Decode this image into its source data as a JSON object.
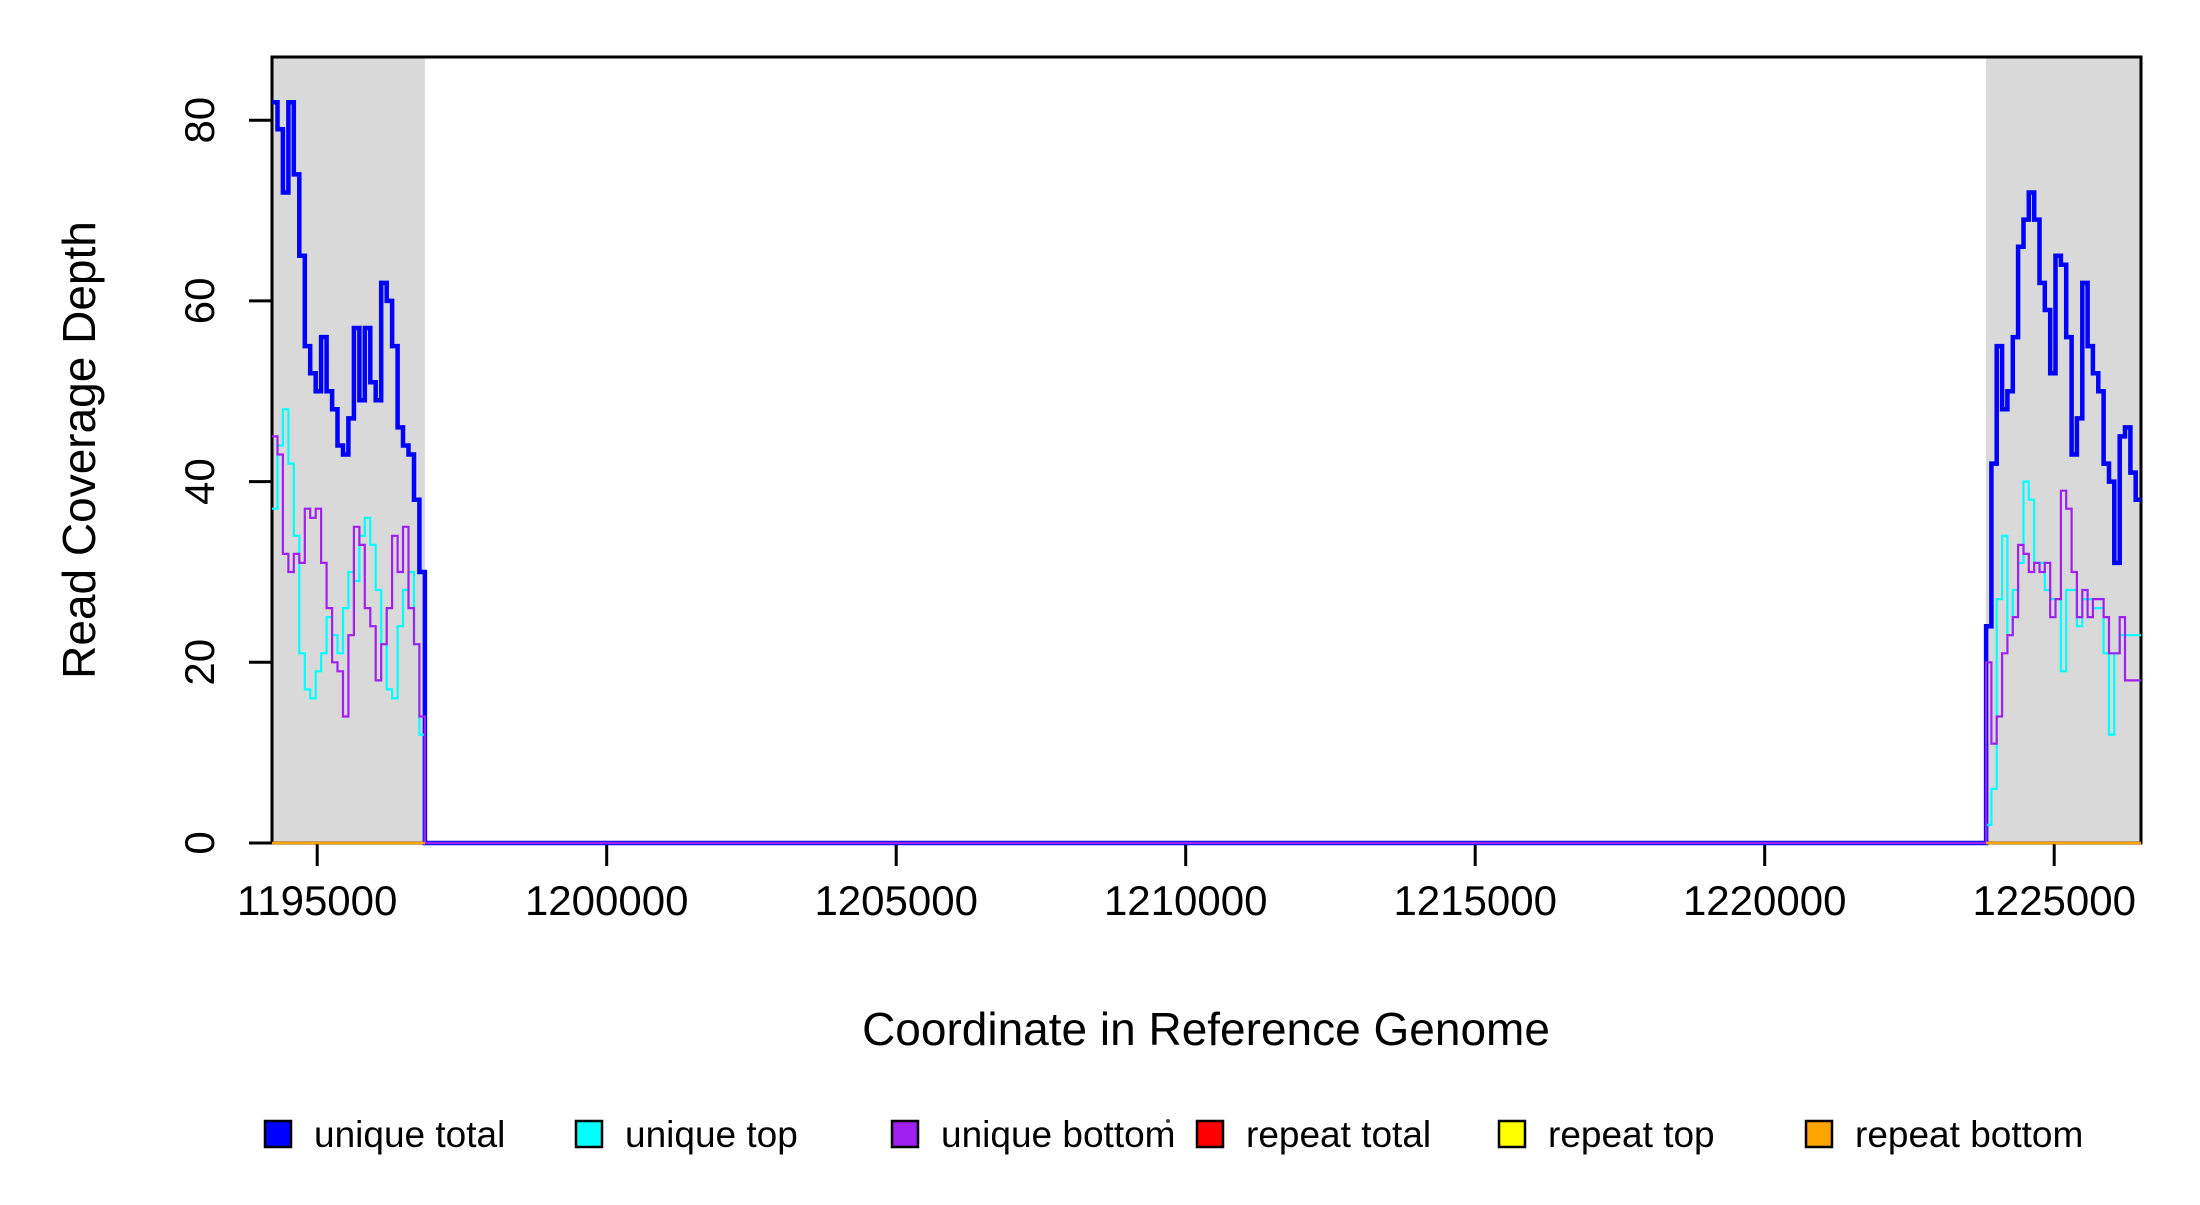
{
  "chart_data": {
    "type": "line",
    "title": "",
    "xlabel": "Coordinate in Reference Genome",
    "ylabel": "Read Coverage Depth",
    "xlim": [
      1194220,
      1226500
    ],
    "ylim": [
      0,
      87
    ],
    "x_ticks": [
      1195000,
      1200000,
      1205000,
      1210000,
      1215000,
      1220000,
      1225000
    ],
    "y_ticks": [
      0,
      20,
      40,
      60,
      80
    ],
    "grid": false,
    "legend_position": "bottom-horizontal",
    "shaded_regions": [
      {
        "name": "left-amplicon",
        "from": 1194220,
        "to": 1196860,
        "color": "#D9D9D9"
      },
      {
        "name": "right-amplicon",
        "from": 1223824,
        "to": 1226500,
        "color": "#D9D9D9"
      }
    ],
    "series": [
      {
        "name": "unique total",
        "color": "#0000FF",
        "line_width": 4.5,
        "connect_zero": true,
        "segments": [
          {
            "start": 1194220,
            "step": 94.3,
            "values": [
              82,
              79,
              72,
              82,
              74,
              65,
              55,
              52,
              50,
              56,
              50,
              48,
              44,
              43,
              47,
              57,
              49,
              57,
              51,
              49,
              62,
              60,
              55,
              46,
              44,
              43,
              38,
              30
            ]
          },
          {
            "start": 1223824,
            "step": 92.3,
            "values": [
              24,
              42,
              55,
              48,
              50,
              56,
              66,
              69,
              72,
              69,
              62,
              59,
              52,
              65,
              64,
              56,
              43,
              47,
              62,
              55,
              52,
              50,
              42,
              40,
              31,
              45,
              46,
              41,
              38
            ]
          }
        ]
      },
      {
        "name": "unique top",
        "color": "#00FFFF",
        "line_width": 2.2,
        "connect_zero": true,
        "segments": [
          {
            "start": 1194220,
            "step": 94.3,
            "values": [
              37,
              44,
              48,
              42,
              34,
              21,
              17,
              16,
              19,
              21,
              25,
              23,
              21,
              26,
              30,
              29,
              34,
              36,
              33,
              28,
              22,
              17,
              16,
              24,
              28,
              30,
              22,
              12
            ]
          },
          {
            "start": 1223824,
            "step": 92.3,
            "values": [
              2,
              6,
              27,
              34,
              23,
              28,
              31,
              40,
              38,
              31,
              31,
              28,
              27,
              27,
              19,
              28,
              28,
              24,
              27,
              27,
              26,
              26,
              21,
              12,
              21,
              23,
              23,
              23,
              23
            ]
          }
        ]
      },
      {
        "name": "unique bottom",
        "color": "#A020F0",
        "line_width": 2.2,
        "connect_zero": true,
        "segments": [
          {
            "start": 1194220,
            "step": 94.3,
            "values": [
              45,
              43,
              32,
              30,
              32,
              31,
              37,
              36,
              37,
              31,
              26,
              20,
              19,
              14,
              23,
              35,
              33,
              26,
              24,
              18,
              22,
              26,
              34,
              30,
              35,
              26,
              22,
              14
            ]
          },
          {
            "start": 1223824,
            "step": 92.3,
            "values": [
              20,
              11,
              14,
              21,
              23,
              25,
              33,
              32,
              30,
              31,
              30,
              31,
              25,
              27,
              39,
              37,
              30,
              25,
              28,
              25,
              27,
              27,
              25,
              21,
              21,
              25,
              18,
              18,
              18
            ]
          }
        ]
      },
      {
        "name": "repeat total",
        "color": "#FF0000",
        "line_width": 2.2,
        "connect_zero": false,
        "segments": [
          {
            "start": 1194220,
            "step": 2640,
            "values": [
              0
            ]
          },
          {
            "start": 1223824,
            "step": 2676,
            "values": [
              0
            ]
          }
        ]
      },
      {
        "name": "repeat top",
        "color": "#FFFF00",
        "line_width": 2.2,
        "connect_zero": false,
        "segments": [
          {
            "start": 1194220,
            "step": 2640,
            "values": [
              0
            ]
          },
          {
            "start": 1223824,
            "step": 2676,
            "values": [
              0
            ]
          }
        ]
      },
      {
        "name": "repeat bottom",
        "color": "#FFA500",
        "line_width": 2.2,
        "connect_zero": false,
        "segments": [
          {
            "start": 1194220,
            "step": 2640,
            "values": [
              0
            ]
          },
          {
            "start": 1223824,
            "step": 2676,
            "values": [
              0
            ]
          }
        ]
      }
    ],
    "legend": [
      {
        "label": "unique total",
        "color": "#0000FF"
      },
      {
        "label": "unique top",
        "color": "#00FFFF"
      },
      {
        "label": "unique bottom",
        "color": "#A020F0"
      },
      {
        "label": "repeat total",
        "color": "#FF0000"
      },
      {
        "label": "repeat top",
        "color": "#FFFF00"
      },
      {
        "label": "repeat bottom",
        "color": "#FFA500"
      }
    ]
  }
}
